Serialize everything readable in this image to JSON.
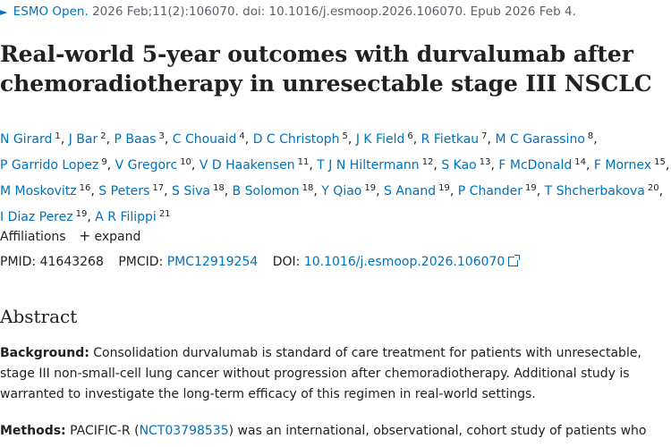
{
  "citation": {
    "journal": "ESMO Open.",
    "details": "2026 Feb;11(2):106070. doi: 10.1016/j.esmoop.2026.106070. Epub 2026 Feb 4."
  },
  "title": "Real-world 5-year outcomes with durvalumab after chemoradiotherapy in unresectable stage III NSCLC",
  "authors": [
    {
      "name": "N Girard",
      "aff": "1"
    },
    {
      "name": "J Bar",
      "aff": "2"
    },
    {
      "name": "P Baas",
      "aff": "3"
    },
    {
      "name": "C Chouaid",
      "aff": "4"
    },
    {
      "name": "D C Christoph",
      "aff": "5"
    },
    {
      "name": "J K Field",
      "aff": "6"
    },
    {
      "name": "R Fietkau",
      "aff": "7"
    },
    {
      "name": "M C Garassino",
      "aff": "8"
    },
    {
      "name": "P Garrido Lopez",
      "aff": "9"
    },
    {
      "name": "V Gregorc",
      "aff": "10"
    },
    {
      "name": "V D Haakensen",
      "aff": "11"
    },
    {
      "name": "T J N Hiltermann",
      "aff": "12"
    },
    {
      "name": "S Kao",
      "aff": "13"
    },
    {
      "name": "F McDonald",
      "aff": "14"
    },
    {
      "name": "F Mornex",
      "aff": "15"
    },
    {
      "name": "M Moskovitz",
      "aff": "16"
    },
    {
      "name": "S Peters",
      "aff": "17"
    },
    {
      "name": "S Siva",
      "aff": "18"
    },
    {
      "name": "B Solomon",
      "aff": "18"
    },
    {
      "name": "Y Qiao",
      "aff": "19"
    },
    {
      "name": "S Anand",
      "aff": "19"
    },
    {
      "name": "P Chander",
      "aff": "19"
    },
    {
      "name": "T Shcherbakova",
      "aff": "20"
    },
    {
      "name": "I Diaz Perez",
      "aff": "19"
    },
    {
      "name": "A R Filippi",
      "aff": "21"
    }
  ],
  "affiliations": {
    "label": "Affiliations",
    "expand_label": "expand"
  },
  "identifiers": {
    "pmid_label": "PMID:",
    "pmid": "41643268",
    "pmcid_label": "PMCID:",
    "pmcid": "PMC12919254",
    "doi_label": "DOI:",
    "doi": "10.1016/j.esmoop.2026.106070"
  },
  "abstract": {
    "heading": "Abstract",
    "background_label": "Background:",
    "background_text": "Consolidation durvalumab is standard of care treatment for patients with unresectable, stage III non-small-cell lung cancer without progression after chemoradiotherapy. Additional study is warranted to investigate the long-term efficacy of this regimen in real-world settings.",
    "methods_label": "Methods:",
    "methods_pre": "PACIFIC-R (",
    "methods_link": "NCT03798535",
    "methods_post": ") was an international, observational, cohort study of patients who"
  }
}
